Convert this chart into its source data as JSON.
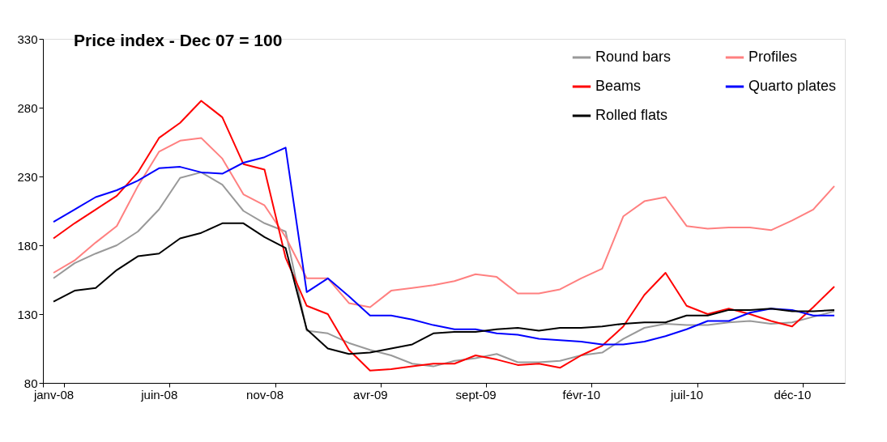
{
  "chart_data": {
    "type": "line",
    "title": "Price index - Dec 07 = 100",
    "categories": [
      "janv-08",
      null,
      null,
      null,
      null,
      "juin-08",
      null,
      null,
      null,
      null,
      "nov-08",
      null,
      null,
      null,
      null,
      "avr-09",
      null,
      null,
      null,
      null,
      "sept-09",
      null,
      null,
      null,
      null,
      "févr-10",
      null,
      null,
      null,
      null,
      "juil-10",
      null,
      null,
      null,
      null,
      "déc-10",
      null,
      null
    ],
    "ylim": [
      80,
      330
    ],
    "yticks": [
      80,
      130,
      180,
      230,
      280,
      330
    ],
    "legend": "top right",
    "marker": "none",
    "line_style": "solid",
    "series": [
      {
        "name": "Round bars",
        "color": "#999999",
        "values": [
          156,
          167,
          174,
          180,
          190,
          206,
          229,
          233,
          224,
          205,
          196,
          190,
          118,
          116,
          109,
          104,
          100,
          94,
          92,
          96,
          98,
          101,
          95,
          95,
          96,
          100,
          102,
          112,
          120,
          123,
          122,
          122,
          124,
          125,
          123,
          124,
          128,
          132
        ]
      },
      {
        "name": "Profiles",
        "color": "#ff8080",
        "values": [
          160,
          169,
          182,
          194,
          223,
          248,
          256,
          258,
          243,
          217,
          209,
          186,
          156,
          156,
          138,
          135,
          147,
          149,
          151,
          154,
          159,
          157,
          145,
          145,
          148,
          156,
          163,
          201,
          212,
          215,
          194,
          192,
          193,
          193,
          191,
          198,
          206,
          223
        ]
      },
      {
        "name": "Beams",
        "color": "#ff0000",
        "values": [
          185,
          196,
          206,
          216,
          233,
          258,
          269,
          285,
          273,
          239,
          235,
          171,
          136,
          130,
          104,
          89,
          90,
          92,
          94,
          94,
          100,
          97,
          93,
          94,
          91,
          100,
          107,
          121,
          144,
          160,
          136,
          130,
          134,
          130,
          125,
          121,
          135,
          150
        ]
      },
      {
        "name": "Quarto plates",
        "color": "#0000ff",
        "values": [
          197,
          206,
          215,
          220,
          227,
          236,
          237,
          233,
          232,
          240,
          244,
          251,
          146,
          156,
          143,
          129,
          129,
          126,
          122,
          119,
          119,
          116,
          115,
          112,
          111,
          110,
          108,
          108,
          110,
          114,
          119,
          125,
          125,
          131,
          134,
          133,
          129,
          129
        ]
      },
      {
        "name": "Rolled flats",
        "color": "#000000",
        "values": [
          139,
          147,
          149,
          162,
          172,
          174,
          185,
          189,
          196,
          196,
          186,
          178,
          119,
          105,
          101,
          102,
          105,
          108,
          116,
          117,
          117,
          119,
          120,
          118,
          120,
          120,
          121,
          123,
          124,
          124,
          129,
          129,
          133,
          133,
          134,
          132,
          132,
          133
        ]
      }
    ]
  }
}
